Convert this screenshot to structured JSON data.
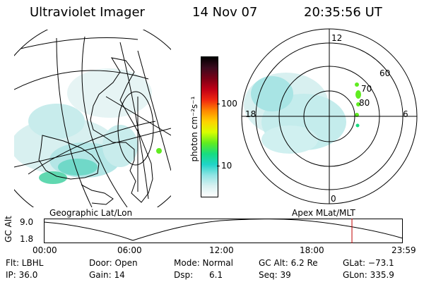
{
  "header": {
    "title": "Ultraviolet Imager",
    "date": "14 Nov 07",
    "time": "20:35:56 UT"
  },
  "colorbar": {
    "label": "photon cm⁻²s⁻¹",
    "ticks": [
      "100",
      "10"
    ],
    "colors": [
      "#000000",
      "#3b0a1e",
      "#7a0016",
      "#c00016",
      "#f02810",
      "#ff8800",
      "#ffd200",
      "#d8ff00",
      "#60ec20",
      "#18dc80",
      "#20d4c8",
      "#90e4e4",
      "#d8f0f0",
      "#ffffff"
    ]
  },
  "map_left": {
    "footer_label": "Geographic Lat/Lon"
  },
  "polar_map": {
    "footer_label": "Apex  MLat/MLT",
    "lat_labels": [
      "80",
      "70",
      "60"
    ],
    "mlt_labels": {
      "top": "12",
      "left": "18",
      "right": "6",
      "bottom": "0"
    }
  },
  "altitude_plot": {
    "ylabel": "GC Alt",
    "yticks": [
      "9.0",
      "1.8"
    ],
    "xticks": [
      "00:00",
      "06:00",
      "12:00",
      "18:00",
      "23:59"
    ],
    "marker_time_hours": 20.6,
    "marker_color": "#c00000"
  },
  "info": {
    "flt": "Flt: LBHL",
    "ip": "IP: 36.0",
    "door": "Door: Open",
    "gain": "Gain: 14",
    "mode": "Mode: Normal",
    "dsp": "Dsp:      6.1",
    "gc_alt": "GC Alt: 6.2 Re",
    "seq": "Seq: 39",
    "glat": "GLat: −73.1",
    "glon": "GLon: 335.9"
  }
}
